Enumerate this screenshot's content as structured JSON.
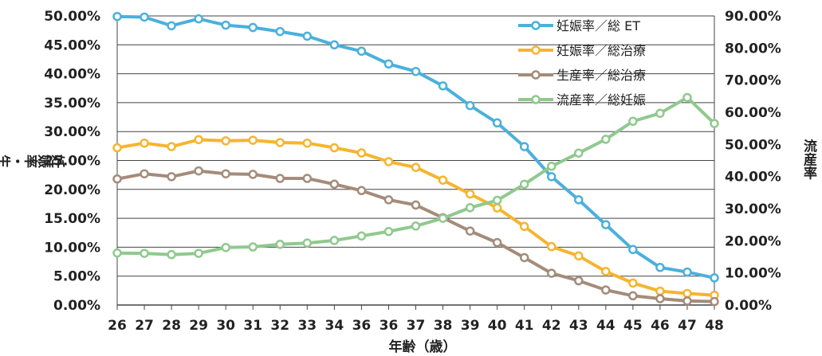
{
  "chart_data": {
    "type": "line",
    "title": "",
    "xlabel": "年齢（歳）",
    "ylabel_left": "妊娠率・生産率",
    "ylabel_right": "流産率",
    "ylim_left": [
      0,
      50
    ],
    "ylim_right": [
      0,
      90
    ],
    "yticks_left": [
      "0.00%",
      "5.00%",
      "10.00%",
      "15.00%",
      "20.00%",
      "25.00%",
      "30.00%",
      "35.00%",
      "40.00%",
      "45.00%",
      "50.00%"
    ],
    "yticks_right": [
      "0.00%",
      "10.00%",
      "20.00%",
      "30.00%",
      "40.00%",
      "50.00%",
      "60.00%",
      "70.00%",
      "80.00%",
      "90.00%"
    ],
    "grid": true,
    "legend_position": "top-right",
    "categories": [
      "26",
      "27",
      "28",
      "29",
      "30",
      "31",
      "32",
      "33",
      "34",
      "36",
      "36",
      "37",
      "38",
      "39",
      "40",
      "41",
      "42",
      "43",
      "44",
      "45",
      "46",
      "47",
      "48"
    ],
    "series": [
      {
        "name": "妊娠率／総 ET",
        "axis": "left",
        "color": "#4bb0dc",
        "values": [
          49.9,
          49.8,
          48.3,
          49.5,
          48.4,
          48.0,
          47.3,
          46.5,
          45.0,
          43.9,
          41.7,
          40.4,
          37.9,
          34.5,
          31.5,
          27.4,
          22.2,
          18.2,
          13.9,
          9.6,
          6.5,
          5.7,
          4.7
        ]
      },
      {
        "name": "妊娠率／総治療",
        "axis": "left",
        "color": "#f5b52e",
        "values": [
          27.2,
          28.0,
          27.4,
          28.6,
          28.4,
          28.5,
          28.1,
          28.0,
          27.2,
          26.3,
          24.8,
          23.8,
          21.6,
          19.2,
          16.8,
          13.6,
          10.1,
          8.5,
          5.8,
          3.8,
          2.4,
          2.0,
          1.7
        ]
      },
      {
        "name": "生産率／総治療",
        "axis": "left",
        "color": "#a48c7a",
        "values": [
          21.8,
          22.7,
          22.2,
          23.2,
          22.7,
          22.6,
          21.9,
          21.9,
          20.9,
          19.8,
          18.2,
          17.3,
          15.1,
          12.8,
          10.8,
          8.2,
          5.5,
          4.2,
          2.6,
          1.6,
          1.1,
          0.7,
          0.6
        ]
      },
      {
        "name": "流産率／総妊娠",
        "axis": "right",
        "color": "#8fc98e",
        "values": [
          16.2,
          16.1,
          15.7,
          16.1,
          17.9,
          18.1,
          18.9,
          19.3,
          20.1,
          21.5,
          22.9,
          24.6,
          27.0,
          30.3,
          32.6,
          37.6,
          43.2,
          47.3,
          51.6,
          57.2,
          59.7,
          64.6,
          56.5
        ]
      }
    ]
  }
}
